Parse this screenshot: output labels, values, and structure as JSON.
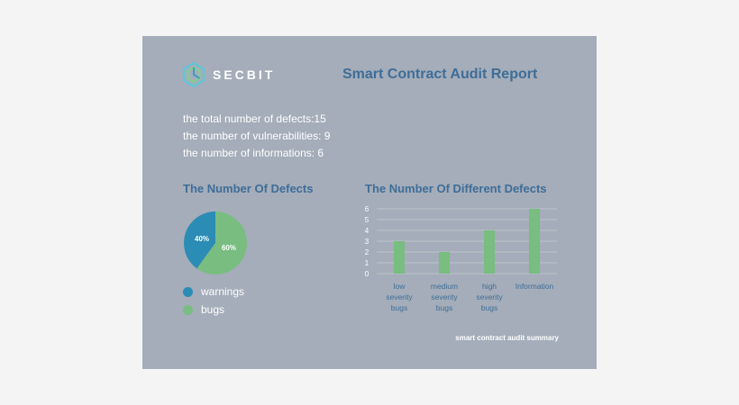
{
  "brand": {
    "name": "SECBIT",
    "logo_icon": "secbit-hexagon-logo"
  },
  "report": {
    "title": "Smart Contract Audit Report"
  },
  "stats": [
    "the total number of defects:15",
    "the number of vulnerabilities: 9",
    "the number of informations: 6"
  ],
  "footer": "smart contract audit summary",
  "colors": {
    "card": "#a4adb9",
    "title": "#3f6d98",
    "blue": "#2b8cb5",
    "green": "#79bd80"
  },
  "chart_data": [
    {
      "type": "pie",
      "title": "The Number Of Defects",
      "slices": [
        {
          "name": "warnings",
          "value": 40,
          "label": "40%",
          "color": "#2b8cb5"
        },
        {
          "name": "bugs",
          "value": 60,
          "label": "60%",
          "color": "#79bd80"
        }
      ],
      "legend": "bottom-left"
    },
    {
      "type": "bar",
      "title": "The Number Of Different Defects",
      "categories": [
        [
          "low",
          "severity",
          "bugs"
        ],
        [
          "medium",
          "severity",
          "bugs"
        ],
        [
          "high",
          "severity",
          "bugs"
        ],
        [
          "Information"
        ]
      ],
      "values": [
        3,
        2,
        4,
        6
      ],
      "yticks": [
        "0",
        "1",
        "2",
        "3",
        "4",
        "5",
        "6"
      ],
      "ylim": [
        0,
        6
      ],
      "grid": true,
      "color": "#79bd80"
    }
  ]
}
